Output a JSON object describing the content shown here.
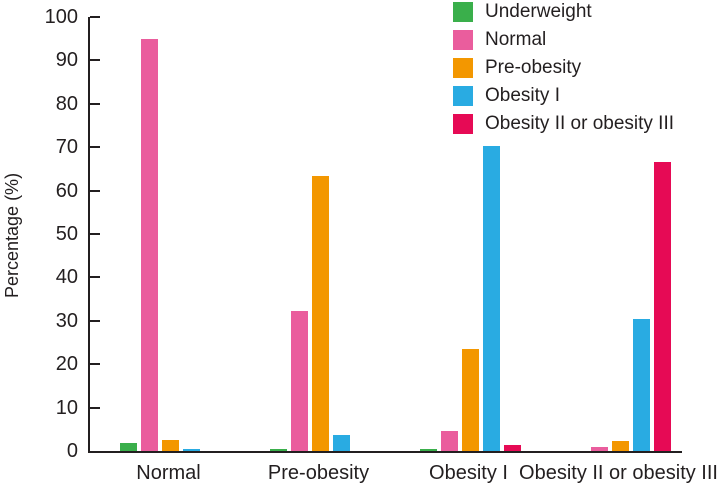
{
  "chart_data": {
    "type": "bar",
    "title": "",
    "xlabel": "",
    "ylabel": "Percentage (%)",
    "ylim": [
      0,
      100
    ],
    "yticks": [
      0,
      10,
      20,
      30,
      40,
      50,
      60,
      70,
      80,
      90,
      100
    ],
    "grid": false,
    "legend_position": "top-right",
    "categories": [
      "Normal",
      "Pre-obesity",
      "Obesity I",
      "Obesity II or obesity III"
    ],
    "series": [
      {
        "name": "Underweight",
        "color": "#3aaf4b",
        "values": [
          1.8,
          0.4,
          0.4,
          0
        ]
      },
      {
        "name": "Normal",
        "color": "#ea5d9d",
        "values": [
          95.0,
          32.2,
          4.7,
          1.0
        ]
      },
      {
        "name": "Pre-obesity",
        "color": "#f39700",
        "values": [
          2.6,
          63.4,
          23.5,
          2.3
        ]
      },
      {
        "name": "Obesity I",
        "color": "#29abe2",
        "values": [
          0.4,
          3.8,
          70.2,
          30.4
        ]
      },
      {
        "name": "Obesity II or obesity III",
        "color": "#e60a55",
        "values": [
          0,
          0,
          1.5,
          66.5
        ]
      }
    ],
    "axis_color": "#231f20",
    "text_color": "#231f20"
  }
}
